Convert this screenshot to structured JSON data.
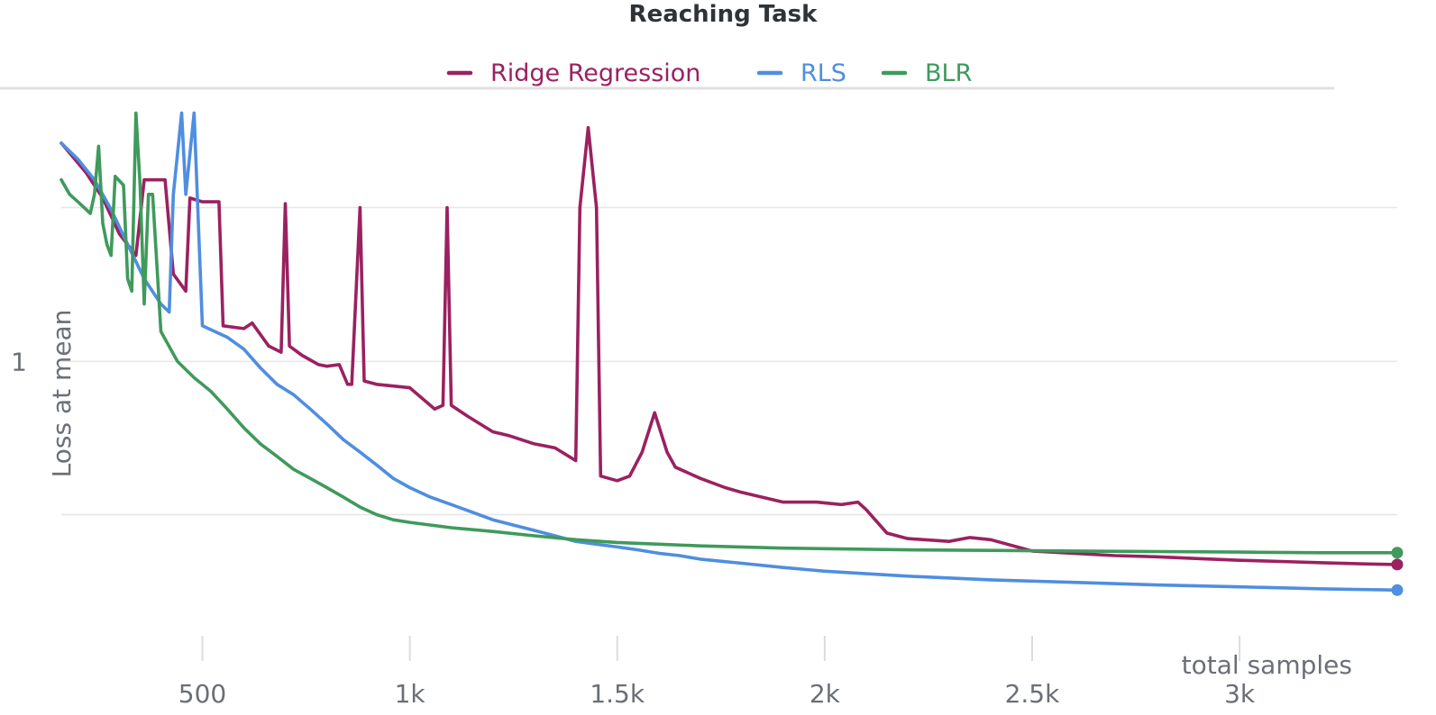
{
  "chart_data": {
    "type": "line",
    "title": "Reaching Task",
    "xlabel": "total samples",
    "ylabel": "Loss at mean",
    "xlim": [
      160,
      3380
    ],
    "ylim": [
      0.4,
      2.3
    ],
    "y_scale": "log",
    "grid": true,
    "legend_placement": "top-center",
    "x_ticks": [
      {
        "value": 500,
        "label": "500"
      },
      {
        "value": 1000,
        "label": "1k"
      },
      {
        "value": 1500,
        "label": "1.5k"
      },
      {
        "value": 2000,
        "label": "2k"
      },
      {
        "value": 2500,
        "label": "2.5k"
      },
      {
        "value": 3000,
        "label": "3k"
      }
    ],
    "y_ticks": [
      {
        "value": 1,
        "label": "1"
      }
    ],
    "y_gridlines": [
      1.63,
      1.0,
      0.615
    ],
    "series": [
      {
        "name": "Ridge Regression",
        "color": "#9b2160",
        "points": [
          [
            160,
            2.0
          ],
          [
            220,
            1.82
          ],
          [
            260,
            1.68
          ],
          [
            300,
            1.5
          ],
          [
            340,
            1.4
          ],
          [
            360,
            1.78
          ],
          [
            400,
            1.78
          ],
          [
            410,
            1.78
          ],
          [
            430,
            1.32
          ],
          [
            460,
            1.25
          ],
          [
            470,
            1.68
          ],
          [
            500,
            1.66
          ],
          [
            540,
            1.66
          ],
          [
            550,
            1.12
          ],
          [
            600,
            1.11
          ],
          [
            620,
            1.13
          ],
          [
            660,
            1.05
          ],
          [
            690,
            1.03
          ],
          [
            700,
            1.65
          ],
          [
            710,
            1.05
          ],
          [
            740,
            1.02
          ],
          [
            780,
            0.99
          ],
          [
            800,
            0.985
          ],
          [
            830,
            0.99
          ],
          [
            850,
            0.93
          ],
          [
            860,
            0.93
          ],
          [
            880,
            1.63
          ],
          [
            890,
            0.94
          ],
          [
            920,
            0.93
          ],
          [
            960,
            0.925
          ],
          [
            1000,
            0.92
          ],
          [
            1060,
            0.86
          ],
          [
            1080,
            0.87
          ],
          [
            1090,
            1.63
          ],
          [
            1100,
            0.87
          ],
          [
            1140,
            0.84
          ],
          [
            1200,
            0.8
          ],
          [
            1240,
            0.79
          ],
          [
            1300,
            0.77
          ],
          [
            1350,
            0.76
          ],
          [
            1400,
            0.73
          ],
          [
            1410,
            1.63
          ],
          [
            1430,
            2.1
          ],
          [
            1450,
            1.63
          ],
          [
            1460,
            0.695
          ],
          [
            1500,
            0.685
          ],
          [
            1530,
            0.695
          ],
          [
            1560,
            0.75
          ],
          [
            1590,
            0.85
          ],
          [
            1620,
            0.75
          ],
          [
            1640,
            0.715
          ],
          [
            1700,
            0.69
          ],
          [
            1760,
            0.67
          ],
          [
            1800,
            0.66
          ],
          [
            1900,
            0.64
          ],
          [
            1980,
            0.64
          ],
          [
            2040,
            0.635
          ],
          [
            2080,
            0.64
          ],
          [
            2100,
            0.625
          ],
          [
            2150,
            0.58
          ],
          [
            2200,
            0.57
          ],
          [
            2300,
            0.565
          ],
          [
            2350,
            0.572
          ],
          [
            2400,
            0.568
          ],
          [
            2500,
            0.548
          ],
          [
            2600,
            0.544
          ],
          [
            2700,
            0.54
          ],
          [
            2800,
            0.538
          ],
          [
            2900,
            0.535
          ],
          [
            3000,
            0.532
          ],
          [
            3100,
            0.53
          ],
          [
            3200,
            0.528
          ],
          [
            3300,
            0.526
          ],
          [
            3380,
            0.525
          ]
        ]
      },
      {
        "name": "RLS",
        "color": "#4f8ee0",
        "points": [
          [
            160,
            2.0
          ],
          [
            200,
            1.9
          ],
          [
            240,
            1.78
          ],
          [
            280,
            1.62
          ],
          [
            320,
            1.45
          ],
          [
            360,
            1.3
          ],
          [
            400,
            1.2
          ],
          [
            420,
            1.17
          ],
          [
            430,
            1.7
          ],
          [
            450,
            2.2
          ],
          [
            460,
            1.7
          ],
          [
            480,
            2.2
          ],
          [
            500,
            1.12
          ],
          [
            560,
            1.08
          ],
          [
            600,
            1.04
          ],
          [
            640,
            0.98
          ],
          [
            680,
            0.93
          ],
          [
            720,
            0.9
          ],
          [
            760,
            0.86
          ],
          [
            800,
            0.82
          ],
          [
            840,
            0.78
          ],
          [
            880,
            0.75
          ],
          [
            920,
            0.72
          ],
          [
            960,
            0.69
          ],
          [
            1000,
            0.67
          ],
          [
            1050,
            0.65
          ],
          [
            1100,
            0.635
          ],
          [
            1150,
            0.62
          ],
          [
            1200,
            0.605
          ],
          [
            1250,
            0.595
          ],
          [
            1300,
            0.585
          ],
          [
            1350,
            0.575
          ],
          [
            1400,
            0.565
          ],
          [
            1450,
            0.56
          ],
          [
            1500,
            0.555
          ],
          [
            1550,
            0.55
          ],
          [
            1600,
            0.544
          ],
          [
            1650,
            0.54
          ],
          [
            1700,
            0.534
          ],
          [
            1800,
            0.527
          ],
          [
            1900,
            0.52
          ],
          [
            2000,
            0.514
          ],
          [
            2200,
            0.506
          ],
          [
            2400,
            0.5
          ],
          [
            2600,
            0.496
          ],
          [
            2800,
            0.492
          ],
          [
            3000,
            0.489
          ],
          [
            3200,
            0.486
          ],
          [
            3380,
            0.484
          ]
        ]
      },
      {
        "name": "BLR",
        "color": "#3f9a5c",
        "points": [
          [
            160,
            1.78
          ],
          [
            180,
            1.7
          ],
          [
            200,
            1.66
          ],
          [
            230,
            1.6
          ],
          [
            240,
            1.7
          ],
          [
            250,
            1.98
          ],
          [
            260,
            1.55
          ],
          [
            270,
            1.45
          ],
          [
            280,
            1.4
          ],
          [
            290,
            1.8
          ],
          [
            310,
            1.75
          ],
          [
            320,
            1.3
          ],
          [
            330,
            1.25
          ],
          [
            340,
            2.2
          ],
          [
            350,
            1.75
          ],
          [
            360,
            1.2
          ],
          [
            370,
            1.7
          ],
          [
            380,
            1.7
          ],
          [
            400,
            1.1
          ],
          [
            440,
            1.0
          ],
          [
            480,
            0.95
          ],
          [
            520,
            0.91
          ],
          [
            560,
            0.86
          ],
          [
            600,
            0.81
          ],
          [
            640,
            0.77
          ],
          [
            680,
            0.74
          ],
          [
            720,
            0.71
          ],
          [
            760,
            0.69
          ],
          [
            800,
            0.67
          ],
          [
            840,
            0.65
          ],
          [
            880,
            0.63
          ],
          [
            920,
            0.615
          ],
          [
            960,
            0.605
          ],
          [
            1000,
            0.6
          ],
          [
            1100,
            0.59
          ],
          [
            1200,
            0.583
          ],
          [
            1300,
            0.575
          ],
          [
            1400,
            0.568
          ],
          [
            1500,
            0.563
          ],
          [
            1600,
            0.56
          ],
          [
            1700,
            0.557
          ],
          [
            1800,
            0.555
          ],
          [
            1900,
            0.553
          ],
          [
            2000,
            0.552
          ],
          [
            2200,
            0.55
          ],
          [
            2400,
            0.549
          ],
          [
            2600,
            0.548
          ],
          [
            2800,
            0.547
          ],
          [
            3000,
            0.546
          ],
          [
            3200,
            0.545
          ],
          [
            3380,
            0.545
          ]
        ]
      }
    ]
  }
}
